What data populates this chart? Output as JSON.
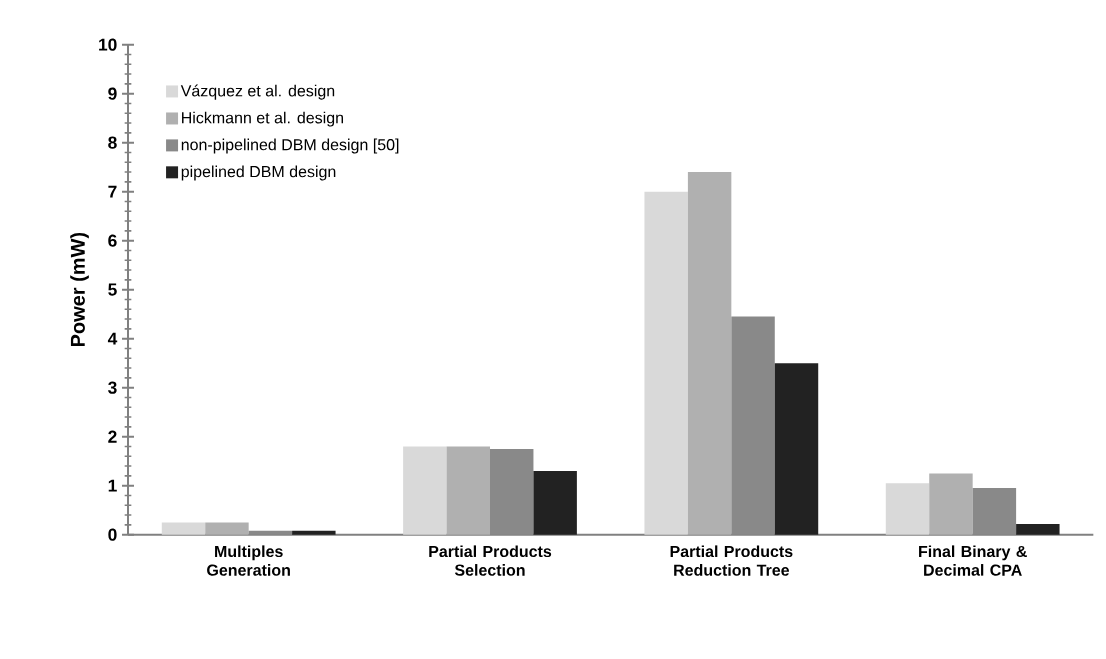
{
  "chart_data": {
    "type": "bar",
    "ylabel": "Power  (mW)",
    "categories": [
      "Multiples Generation",
      "Partial Products Selection",
      "Partial Products Reduction Tree",
      "Final Binary & Decimal CPA"
    ],
    "series": [
      {
        "name": "Vázquez et al. design",
        "color": "#d9d9d9",
        "values": [
          0.25,
          1.8,
          7.0,
          1.05
        ]
      },
      {
        "name": "Hickmann et al. design",
        "color": "#b0b0b0",
        "values": [
          0.25,
          1.8,
          7.4,
          1.25
        ]
      },
      {
        "name": "non-pipelined DBM design [50]",
        "color": "#898989",
        "values": [
          0.08,
          1.75,
          4.45,
          0.95
        ]
      },
      {
        "name": "pipelined DBM design",
        "color": "#222222",
        "values": [
          0.08,
          1.3,
          3.5,
          0.22
        ]
      }
    ],
    "ylim": [
      0,
      10
    ],
    "yticks": [
      0,
      1,
      2,
      3,
      4,
      5,
      6,
      7,
      8,
      9,
      10
    ],
    "grid": false,
    "legend": "top left"
  }
}
